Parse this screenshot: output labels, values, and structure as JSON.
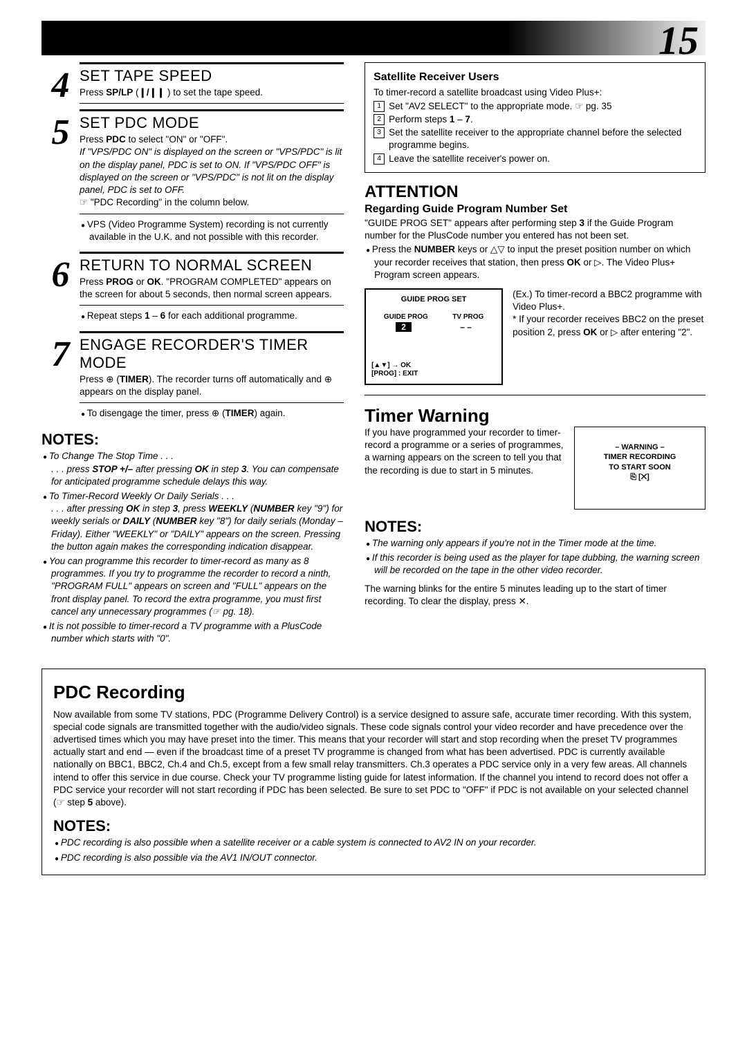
{
  "page_number": "15",
  "styling": {
    "body_font_size_pt": 10,
    "heading_font_size_pt": 16,
    "large_heading_font_size_pt": 20,
    "page_number_font_size_pt": 44,
    "step_number_font_size_pt": 40,
    "background_color": "#ffffff",
    "text_color": "#000000",
    "gradient_from": "#000000",
    "gradient_to": "#eeeeee"
  },
  "steps": [
    {
      "num": "4",
      "title": "SET TAPE SPEED",
      "body_html": "Press <b>SP/LP</b> (<b>❙/❙❙</b> ) to set the tape speed."
    },
    {
      "num": "5",
      "title": "SET PDC MODE",
      "body_html": "Press <b>PDC</b> to select \"ON\" or \"OFF\".<br><i>If \"VPS/PDC ON\" is displayed on the screen or \"VPS/PDC\" is lit on the display panel, PDC is set to ON. If \"VPS/PDC OFF\" is displayed on the screen or \"VPS/PDC\" is not lit on the display panel, PDC is set to OFF.</i><br>☞ \"PDC Recording\" in the column below.",
      "note": "VPS (Video Programme System) recording is not currently available in the U.K. and not possible with this recorder."
    },
    {
      "num": "6",
      "title": "RETURN TO NORMAL SCREEN",
      "body_html": "Press <b>PROG</b> or <b>OK</b>. \"PROGRAM COMPLETED\" appears on the screen for about 5 seconds, then normal screen appears.",
      "note_html": "Repeat steps <b>1</b> – <b>6</b> for each additional programme."
    },
    {
      "num": "7",
      "title": "ENGAGE RECORDER'S TIMER MODE",
      "body_html": "Press ⊕ (<b>TIMER</b>). The recorder turns off automatically and ⊕ appears on the display panel.",
      "note_html": "To disengage the timer, press ⊕ (<b>TIMER</b>) again."
    }
  ],
  "left_notes_heading": "NOTES:",
  "left_notes": [
    "To Change The Stop Time . . .<br>. . . press <b>STOP +/–</b> after pressing <b>OK</b> in step <b>3</b>. You can compensate for anticipated programme schedule delays this way.",
    "To Timer-Record Weekly Or Daily Serials . . .<br>. . . after pressing <b>OK</b> in step <b>3</b>, press <b>WEEKLY</b> (<b>NUMBER</b> key \"9\") for weekly serials or <b>DAILY</b> (<b>NUMBER</b> key \"8\") for daily serials (Monday – Friday). Either \"WEEKLY\" or \"DAILY\" appears on the screen. Pressing the button again makes the corresponding indication disappear.",
    "You can programme this recorder to timer-record as many as 8 programmes. If you try to programme the recorder to record a ninth, \"PROGRAM FULL\" appears on screen and \"FULL\" appears on the front display panel. To record the extra programme, you must first cancel any unnecessary programmes (☞ pg. 18).",
    "It is not possible to timer-record a TV programme with a PlusCode number which starts with \"0\"."
  ],
  "sat_box": {
    "title": "Satellite Receiver Users",
    "intro": "To timer-record a satellite broadcast using Video Plus+:",
    "items": [
      "Set \"AV2 SELECT\" to the appropriate mode. ☞ pg. 35",
      "Perform steps <b>1</b> – <b>7</b>.",
      "Set the satellite receiver to the appropriate channel before the selected programme begins.",
      "Leave the satellite receiver's power on."
    ]
  },
  "attention": {
    "heading": "ATTENTION",
    "sub": "Regarding Guide Program Number Set",
    "text_html": "\"GUIDE PROG SET\" appears after performing step <b>3</b> if the Guide Program number for the PlusCode number you entered has not been set.",
    "bullet_html": "Press the <b>NUMBER</b> keys or △▽ to input the preset position number on which your recorder receives that station, then press <b>OK</b> or ▷. The Video Plus+ Program screen appears.",
    "screen": {
      "title": "GUIDE PROG SET",
      "col1": "GUIDE PROG",
      "col2": "TV PROG",
      "val1": "2",
      "val2": "– –",
      "bottom": "[▲▼] → OK<br>[PROG] : EXIT"
    },
    "example_html": "(Ex.) To timer-record a BBC2 programme with Video Plus+.<br>* If your recorder receives BBC2 on the preset position 2, press <b>OK</b> or ▷ after entering \"2\"."
  },
  "timer_warning": {
    "heading": "Timer Warning",
    "text": "If you have programmed your recorder to timer-record a programme or a series of programmes, a warning appears on the screen to tell you that the recording is due to start in 5 minutes.",
    "warn_box": "– WARNING –<br>TIMER  RECORDING<br>TO  START SOON<br>⎘ [✕]",
    "notes_heading": "NOTES:",
    "notes": [
      "The warning only appears if you're not in the Timer mode at the time.",
      "If this recorder is being used as the player for tape dubbing, the warning screen will be recorded on the tape in the other video recorder."
    ],
    "tail": "The warning blinks for the entire 5 minutes leading up to the start of timer recording. To clear the display, press ✕."
  },
  "pdc": {
    "heading": "PDC Recording",
    "body_html": "Now available from some TV stations, PDC (Programme Delivery Control) is a service designed to assure safe, accurate timer recording. With this system, special code signals are transmitted together with the audio/video signals. These code signals control your video recorder and have precedence over the advertised times which you may have preset into the timer. This means that your recorder will start and stop recording when the preset TV programmes actually start and end — even if the broadcast time of a preset TV programme is changed from what has been advertised. PDC is currently available nationally on BBC1, BBC2, Ch.4 and Ch.5, except from a few small relay transmitters.  Ch.3 operates a PDC service only in a very few areas. All channels intend to offer this service in due course. Check your TV programme listing guide for latest information. If the channel you intend to record does not offer a PDC service your recorder will not start recording if PDC has been selected. Be sure to set PDC to \"OFF\" if PDC is not available on your selected channel (☞ step <b>5</b> above).",
    "notes_heading": "NOTES:",
    "notes": [
      "PDC recording is also possible when a satellite receiver or a cable system is connected to AV2 IN on your recorder.",
      "PDC recording is also possible via the AV1 IN/OUT connector."
    ]
  }
}
